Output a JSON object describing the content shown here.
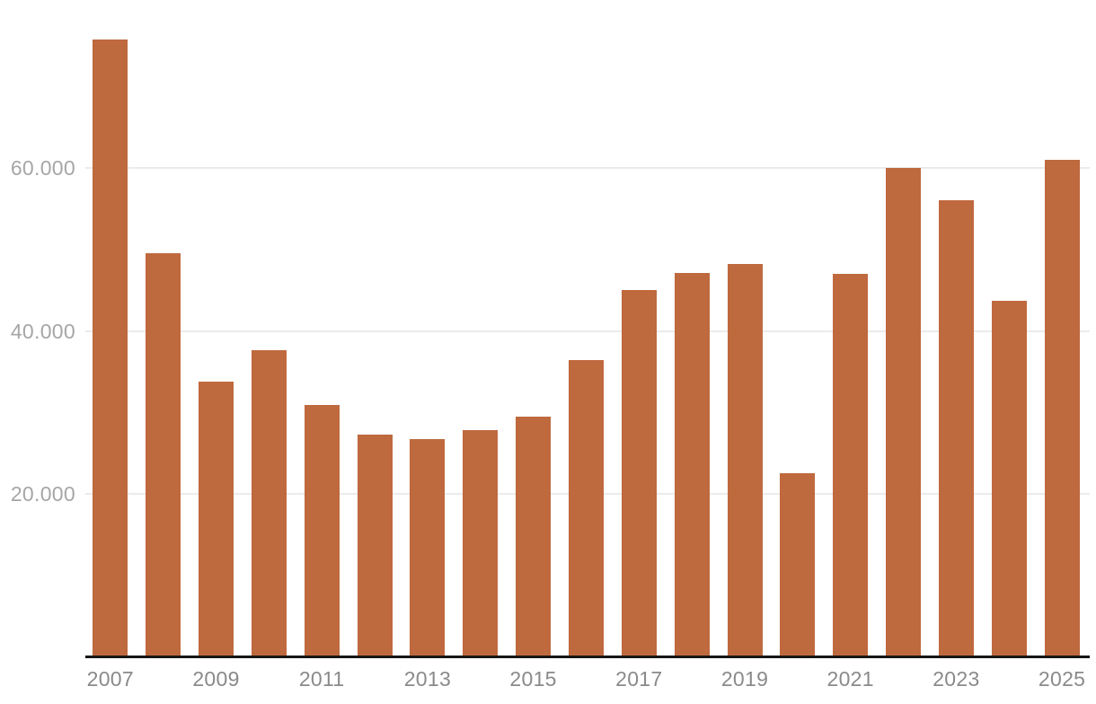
{
  "chart_data": {
    "type": "bar",
    "title": "",
    "xlabel": "",
    "ylabel": "",
    "categories": [
      "2007",
      "2008",
      "2009",
      "2010",
      "2011",
      "2012",
      "2013",
      "2014",
      "2015",
      "2016",
      "2017",
      "2018",
      "2019",
      "2020",
      "2021",
      "2022",
      "2023",
      "2024",
      "2025"
    ],
    "values": [
      75800,
      49600,
      33800,
      37700,
      30900,
      27300,
      26700,
      27900,
      29500,
      36400,
      45100,
      47100,
      48300,
      22600,
      47000,
      60000,
      56100,
      43700,
      61000
    ],
    "x_tick_labels": [
      "2007",
      "2009",
      "2011",
      "2013",
      "2015",
      "2017",
      "2019",
      "2021",
      "2023",
      "2025"
    ],
    "y_ticks": [
      {
        "value": 20000,
        "label": "20.000"
      },
      {
        "value": 40000,
        "label": "40.000"
      },
      {
        "value": 60000,
        "label": "60.000"
      }
    ],
    "ylim": [
      0,
      80000
    ],
    "grid": "horizontal-only",
    "legend": "none",
    "colors": {
      "bar": "#bf693e",
      "gridline": "#ebebeb",
      "axis_line": "#161616",
      "y_tick_text": "#a6a6a6",
      "x_tick_text": "#8a8a8a",
      "background": "#ffffff"
    }
  }
}
